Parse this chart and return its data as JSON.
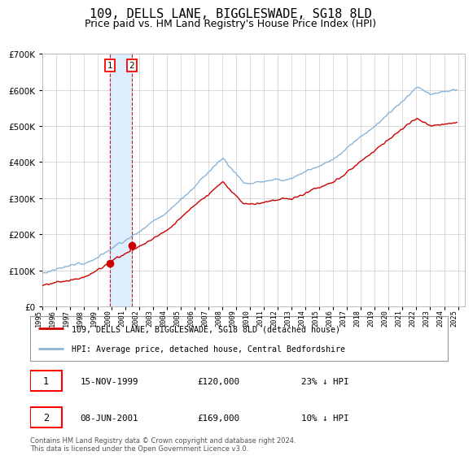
{
  "title": "109, DELLS LANE, BIGGLESWADE, SG18 8LD",
  "subtitle": "Price paid vs. HM Land Registry's House Price Index (HPI)",
  "legend_line1": "109, DELLS LANE, BIGGLESWADE, SG18 8LD (detached house)",
  "legend_line2": "HPI: Average price, detached house, Central Bedfordshire",
  "transaction1_date": "15-NOV-1999",
  "transaction1_price": 120000,
  "transaction1_note": "23% ↓ HPI",
  "transaction2_date": "08-JUN-2001",
  "transaction2_price": 169000,
  "transaction2_note": "10% ↓ HPI",
  "footer": "Contains HM Land Registry data © Crown copyright and database right 2024.\nThis data is licensed under the Open Government Licence v3.0.",
  "hpi_color": "#8ab4d8",
  "price_color": "#cc0000",
  "marker_color": "#cc0000",
  "vline_color": "#cc0000",
  "shade_color": "#ddeeff",
  "background_color": "#ffffff",
  "grid_color": "#cccccc",
  "ylim": [
    0,
    700000
  ],
  "t1_year": 1999.875,
  "t2_year": 2001.458,
  "title_fontsize": 11,
  "subtitle_fontsize": 9
}
